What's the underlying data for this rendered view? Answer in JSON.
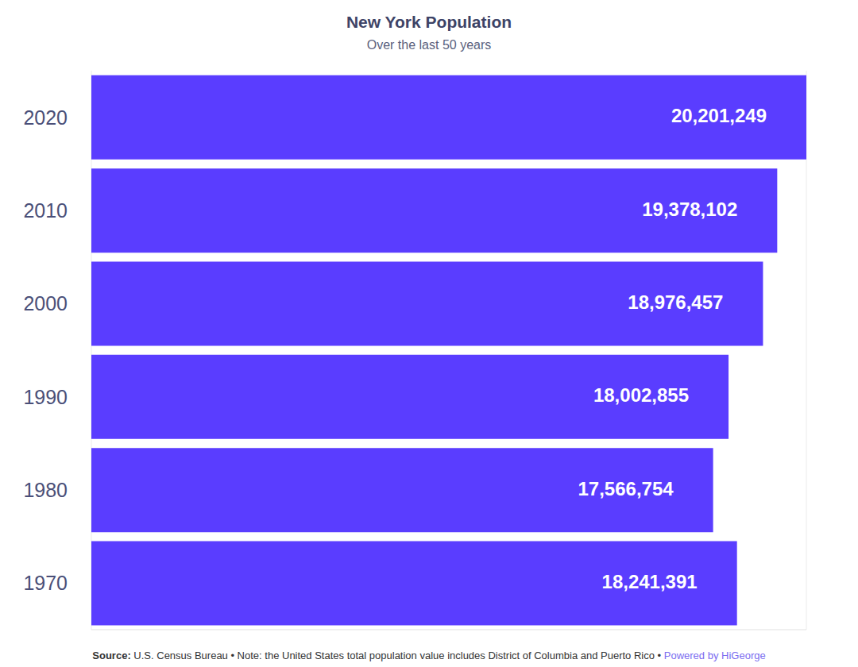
{
  "chart_data": {
    "type": "bar",
    "title": "New York Population",
    "subtitle": "Over the last 50 years",
    "orientation": "horizontal",
    "categories": [
      "2020",
      "2010",
      "2000",
      "1990",
      "1980",
      "1970"
    ],
    "values": [
      20201249,
      19378102,
      18976457,
      18002855,
      17566754,
      18241391
    ],
    "value_labels": [
      "20,201,249",
      "19,378,102",
      "18,976,457",
      "18,002,855",
      "17,566,754",
      "18,241,391"
    ],
    "data_labels": true,
    "color": "#5a3dff",
    "xlim": [
      0,
      20201249
    ],
    "xticks": [
      0,
      2000000,
      4000000,
      6000000,
      8000000,
      10000000,
      12000000,
      14000000,
      16000000,
      18000000,
      20000000
    ],
    "grid": true,
    "tick_labels": "y",
    "source": "Source:",
    "note": "U.S. Census Bureau • Note: the United States total population value includes District of Columbia and Puerto Rico •",
    "credit": "Powered by HiGeorge"
  }
}
